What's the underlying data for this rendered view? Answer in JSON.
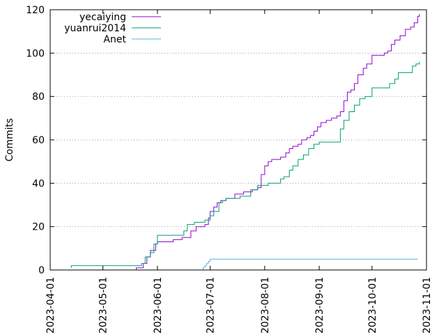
{
  "chart_data": {
    "type": "line",
    "title": "",
    "xlabel": "",
    "ylabel": "Commits",
    "xlim": [
      "2023-04-01",
      "2023-11-01"
    ],
    "ylim": [
      0,
      120
    ],
    "x_ticks": [
      "2023-04-01",
      "2023-05-01",
      "2023-06-01",
      "2023-07-01",
      "2023-08-01",
      "2023-09-01",
      "2023-10-01",
      "2023-11-01"
    ],
    "y_ticks": [
      0,
      20,
      40,
      60,
      80,
      100,
      120
    ],
    "grid": "dotted horizontal",
    "legend_position": "top-left",
    "series": [
      {
        "name": "yecaiying",
        "color": "#9400d3",
        "step": true,
        "points": [
          [
            "2023-04-20",
            0
          ],
          [
            "2023-05-20",
            1
          ],
          [
            "2023-05-24",
            3
          ],
          [
            "2023-05-26",
            6
          ],
          [
            "2023-05-28",
            9
          ],
          [
            "2023-05-31",
            12
          ],
          [
            "2023-06-01",
            13
          ],
          [
            "2023-06-10",
            14
          ],
          [
            "2023-06-15",
            15
          ],
          [
            "2023-06-20",
            18
          ],
          [
            "2023-06-23",
            20
          ],
          [
            "2023-06-28",
            21
          ],
          [
            "2023-06-30",
            24
          ],
          [
            "2023-07-01",
            27
          ],
          [
            "2023-07-03",
            29
          ],
          [
            "2023-07-05",
            31
          ],
          [
            "2023-07-07",
            32
          ],
          [
            "2023-07-10",
            33
          ],
          [
            "2023-07-15",
            35
          ],
          [
            "2023-07-20",
            36
          ],
          [
            "2023-07-25",
            37
          ],
          [
            "2023-07-28",
            38
          ],
          [
            "2023-07-30",
            44
          ],
          [
            "2023-08-01",
            48
          ],
          [
            "2023-08-03",
            50
          ],
          [
            "2023-08-05",
            51
          ],
          [
            "2023-08-10",
            52
          ],
          [
            "2023-08-13",
            54
          ],
          [
            "2023-08-15",
            56
          ],
          [
            "2023-08-17",
            57
          ],
          [
            "2023-08-20",
            58
          ],
          [
            "2023-08-22",
            60
          ],
          [
            "2023-08-25",
            61
          ],
          [
            "2023-08-27",
            62
          ],
          [
            "2023-08-29",
            64
          ],
          [
            "2023-08-31",
            66
          ],
          [
            "2023-09-02",
            68
          ],
          [
            "2023-09-05",
            69
          ],
          [
            "2023-09-08",
            70
          ],
          [
            "2023-09-11",
            71
          ],
          [
            "2023-09-13",
            73
          ],
          [
            "2023-09-15",
            78
          ],
          [
            "2023-09-17",
            82
          ],
          [
            "2023-09-19",
            83
          ],
          [
            "2023-09-21",
            86
          ],
          [
            "2023-09-23",
            90
          ],
          [
            "2023-09-26",
            93
          ],
          [
            "2023-09-28",
            95
          ],
          [
            "2023-10-01",
            99
          ],
          [
            "2023-10-07",
            99
          ],
          [
            "2023-10-08",
            100
          ],
          [
            "2023-10-10",
            101
          ],
          [
            "2023-10-12",
            104
          ],
          [
            "2023-10-14",
            106
          ],
          [
            "2023-10-17",
            108
          ],
          [
            "2023-10-20",
            111
          ],
          [
            "2023-10-23",
            112
          ],
          [
            "2023-10-25",
            114
          ],
          [
            "2023-10-27",
            117
          ],
          [
            "2023-10-28",
            118
          ]
        ]
      },
      {
        "name": "yuanrui2014",
        "color": "#009e73",
        "step": true,
        "points": [
          [
            "2023-04-13",
            1
          ],
          [
            "2023-04-13",
            2
          ],
          [
            "2023-05-22",
            2
          ],
          [
            "2023-05-23",
            3
          ],
          [
            "2023-05-25",
            6
          ],
          [
            "2023-05-28",
            8
          ],
          [
            "2023-05-30",
            12
          ],
          [
            "2023-06-01",
            16
          ],
          [
            "2023-06-16",
            18
          ],
          [
            "2023-06-18",
            21
          ],
          [
            "2023-06-22",
            22
          ],
          [
            "2023-06-28",
            23
          ],
          [
            "2023-07-01",
            25
          ],
          [
            "2023-07-03",
            27
          ],
          [
            "2023-07-06",
            31
          ],
          [
            "2023-07-08",
            32
          ],
          [
            "2023-07-10",
            33
          ],
          [
            "2023-07-18",
            34
          ],
          [
            "2023-07-24",
            37
          ],
          [
            "2023-07-28",
            39
          ],
          [
            "2023-08-03",
            40
          ],
          [
            "2023-08-10",
            42
          ],
          [
            "2023-08-12",
            43
          ],
          [
            "2023-08-15",
            46
          ],
          [
            "2023-08-17",
            48
          ],
          [
            "2023-08-20",
            51
          ],
          [
            "2023-08-23",
            53
          ],
          [
            "2023-08-26",
            56
          ],
          [
            "2023-08-29",
            58
          ],
          [
            "2023-09-01",
            59
          ],
          [
            "2023-09-13",
            65
          ],
          [
            "2023-09-15",
            69
          ],
          [
            "2023-09-18",
            73
          ],
          [
            "2023-09-21",
            76
          ],
          [
            "2023-09-24",
            79
          ],
          [
            "2023-09-27",
            80
          ],
          [
            "2023-10-01",
            84
          ],
          [
            "2023-10-10",
            84
          ],
          [
            "2023-10-11",
            86
          ],
          [
            "2023-10-14",
            88
          ],
          [
            "2023-10-16",
            91
          ],
          [
            "2023-10-23",
            91
          ],
          [
            "2023-10-24",
            94
          ],
          [
            "2023-10-26",
            95
          ],
          [
            "2023-10-28",
            96
          ]
        ]
      },
      {
        "name": "Anet",
        "color": "#56b4e9",
        "step": true,
        "points": [
          [
            "2023-06-26",
            0
          ],
          [
            "2023-06-27",
            1
          ],
          [
            "2023-06-28",
            2
          ],
          [
            "2023-06-29",
            3
          ],
          [
            "2023-06-30",
            4
          ],
          [
            "2023-07-01",
            5
          ],
          [
            "2023-10-27",
            5
          ]
        ]
      }
    ]
  }
}
